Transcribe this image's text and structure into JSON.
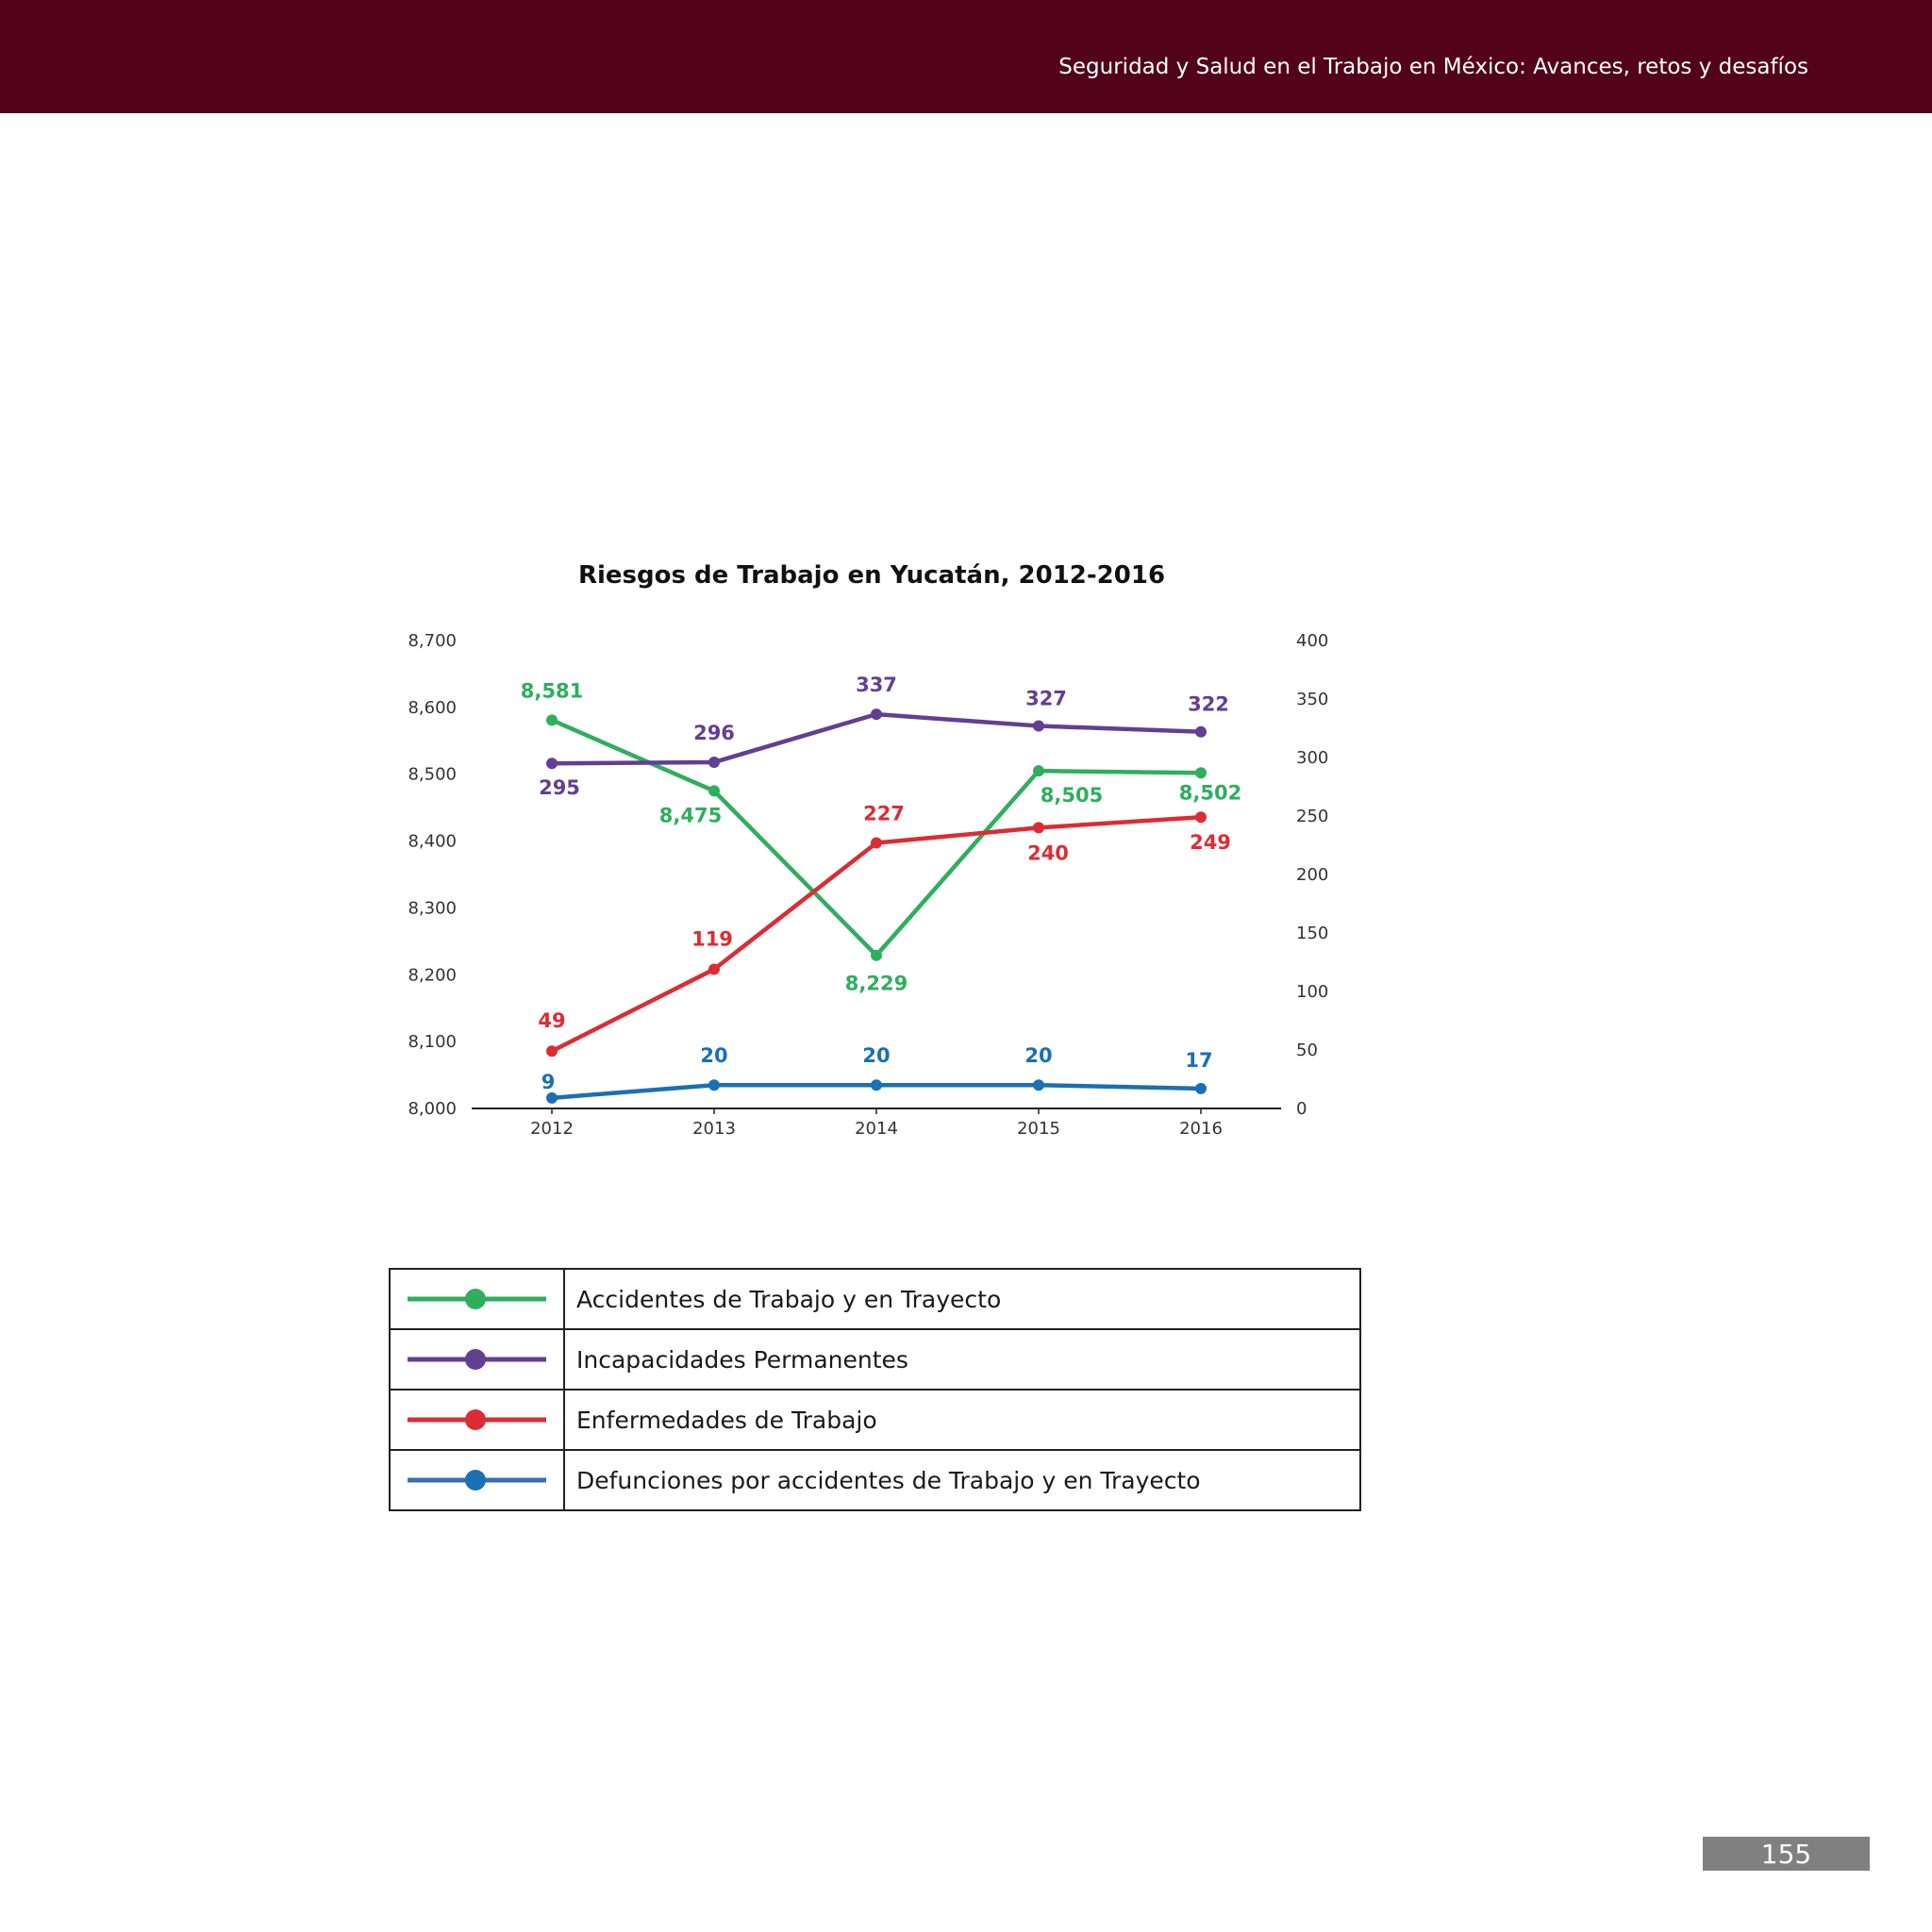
{
  "header": {
    "title": "Seguridad y Salud en el Trabajo en México: Avances, retos y desafíos",
    "band_color": "#520319"
  },
  "page_number": "155",
  "chart_data": {
    "type": "line",
    "title": "Riesgos de Trabajo en Yucatán, 2012-2016",
    "xlabel": "",
    "ylabel": "",
    "categories": [
      "2012",
      "2013",
      "2014",
      "2015",
      "2016"
    ],
    "y_left": {
      "ylim": [
        8000,
        8700
      ],
      "ticks": [
        8000,
        8100,
        8200,
        8300,
        8400,
        8500,
        8600,
        8700
      ],
      "tick_labels": [
        "8,000",
        "8,100",
        "8,200",
        "8,300",
        "8,400",
        "8,500",
        "8,600",
        "8,700"
      ]
    },
    "y_right": {
      "ylim": [
        0,
        400
      ],
      "ticks": [
        0,
        50,
        100,
        150,
        200,
        250,
        300,
        350,
        400
      ],
      "tick_labels": [
        "0",
        "50",
        "100",
        "150",
        "200",
        "250",
        "300",
        "350",
        "400"
      ]
    },
    "grid": false,
    "legend_position": "below-chart",
    "series": [
      {
        "name": "Accidentes de Trabajo y en Trayecto",
        "axis": "left",
        "color": "#2fae5e",
        "values": [
          8581,
          8475,
          8229,
          8505,
          8502
        ],
        "data_labels": [
          "8,581",
          "8,475",
          "8,229",
          "8,505",
          "8,502"
        ]
      },
      {
        "name": "Incapacidades Permanentes",
        "axis": "right",
        "color": "#633f92",
        "values": [
          295,
          296,
          337,
          327,
          322
        ],
        "data_labels": [
          "295",
          "296",
          "337",
          "327",
          "322"
        ]
      },
      {
        "name": "Enfermedades de Trabajo",
        "axis": "right",
        "color": "#dc2c33",
        "values": [
          49,
          119,
          227,
          240,
          249
        ],
        "data_labels": [
          "49",
          "119",
          "227",
          "240",
          "249"
        ]
      },
      {
        "name": "Defunciones por accidentes de Trabajo y en Trayecto",
        "axis": "right",
        "color": "#1a70b3",
        "values": [
          9,
          20,
          20,
          20,
          17
        ],
        "data_labels": [
          "9",
          "20",
          "20",
          "20",
          "17"
        ]
      }
    ]
  },
  "legend": {
    "items": [
      {
        "label": "Accidentes de Trabajo y en Trayecto",
        "color": "#2fae5e"
      },
      {
        "label": "Incapacidades Permanentes",
        "color": "#633f92"
      },
      {
        "label": "Enfermedades de Trabajo",
        "color": "#dc2c33"
      },
      {
        "label": "Defunciones por accidentes de Trabajo y en Trayecto",
        "color": "#3a6fb5",
        "dot_color": "#1a70b3"
      }
    ]
  }
}
